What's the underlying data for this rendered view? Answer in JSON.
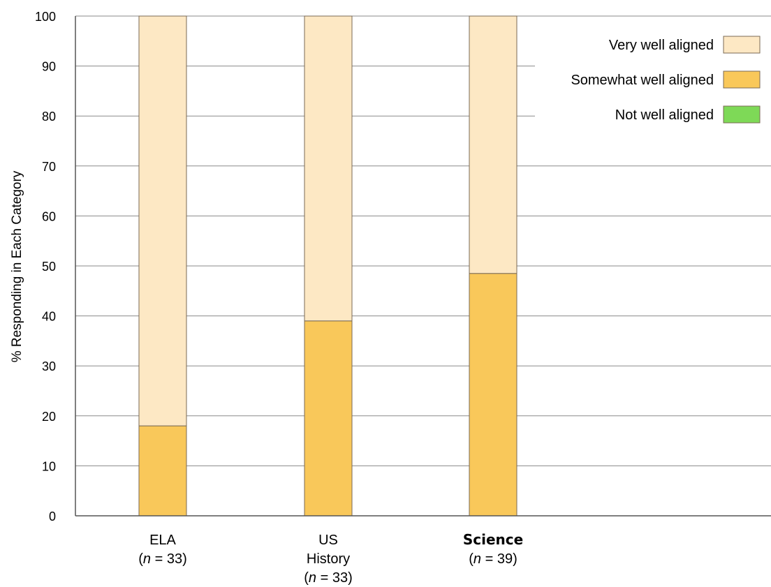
{
  "chart_data": {
    "type": "bar",
    "stacked": true,
    "title": "",
    "ylabel": "% Responding in Each Category",
    "ylim": [
      0,
      100
    ],
    "yticks": [
      0,
      10,
      20,
      30,
      40,
      50,
      60,
      70,
      80,
      90,
      100
    ],
    "grid": true,
    "legend_position": "top-right",
    "categories": [
      {
        "lines": [
          "ELA"
        ],
        "n": "33",
        "bold": false
      },
      {
        "lines": [
          "US",
          "History"
        ],
        "n": "33",
        "bold": false
      },
      {
        "lines": [
          "Science"
        ],
        "n": "39",
        "bold": true
      }
    ],
    "series": [
      {
        "name": "Not well aligned",
        "color": "#7ed957",
        "values": [
          0,
          0,
          0
        ]
      },
      {
        "name": "Somewhat well aligned",
        "color": "#f9c85a",
        "values": [
          18,
          39,
          48.5
        ]
      },
      {
        "name": "Very well aligned",
        "color": "#fde8c4",
        "values": [
          82,
          61,
          51.5
        ]
      }
    ],
    "legend_order": [
      "Very well aligned",
      "Somewhat well aligned",
      "Not well aligned"
    ]
  }
}
